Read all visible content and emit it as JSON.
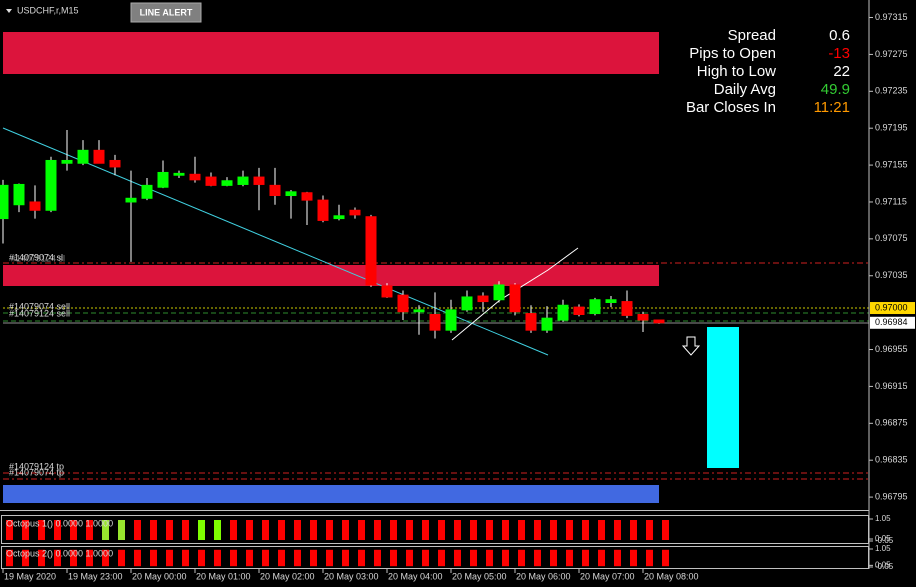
{
  "chart_data": [
    {
      "type": "candlestick",
      "title": "USDCHF,r,M15",
      "categories": [
        "19 May 2020",
        null,
        null,
        null,
        "19 May 23:00",
        null,
        null,
        null,
        "20 May 00:00",
        null,
        null,
        null,
        "20 May 01:00",
        null,
        null,
        null,
        "20 May 02:00",
        null,
        null,
        null,
        "20 May 03:00",
        null,
        null,
        null,
        "20 May 04:00",
        null,
        null,
        null,
        "20 May 05:00",
        null,
        null,
        null,
        "20 May 06:00",
        null,
        null,
        null,
        "20 May 07:00",
        null,
        null,
        null,
        "20 May 08:00",
        null
      ],
      "open": [
        0.97097,
        0.97112,
        0.97115,
        0.97106,
        0.97157,
        0.97157,
        0.97171,
        0.9716,
        0.97115,
        0.97119,
        0.97131,
        0.97144,
        0.97145,
        0.97142,
        0.97133,
        0.97134,
        0.97142,
        0.97133,
        0.97122,
        0.97125,
        0.97117,
        0.97097,
        0.97106,
        0.97099,
        0.97024,
        0.97014,
        0.96996,
        0.96993,
        0.96976,
        0.96998,
        0.97013,
        0.97009,
        0.97025,
        0.96994,
        0.96976,
        0.96987,
        0.97001,
        0.96994,
        0.97006,
        0.97007,
        0.96993,
        0.96987
      ],
      "high": [
        0.97139,
        0.97135,
        0.97133,
        0.97164,
        0.97193,
        0.97182,
        0.97182,
        0.97166,
        0.97149,
        0.97141,
        0.9716,
        0.97149,
        0.97164,
        0.97147,
        0.97142,
        0.97149,
        0.97152,
        0.97152,
        0.97128,
        0.97126,
        0.97122,
        0.97112,
        0.97109,
        0.97101,
        0.97027,
        0.97019,
        0.97003,
        0.97017,
        0.97009,
        0.97019,
        0.97017,
        0.97029,
        0.97027,
        0.97003,
        0.97002,
        0.97009,
        0.97004,
        0.97011,
        0.97013,
        0.97019,
        0.96996,
        0.96987
      ],
      "low": [
        0.9707,
        0.97104,
        0.97097,
        0.97104,
        0.97149,
        0.97155,
        0.97157,
        0.97144,
        0.9705,
        0.97117,
        0.9713,
        0.97141,
        0.97136,
        0.97132,
        0.97132,
        0.97132,
        0.97106,
        0.97112,
        0.97097,
        0.9709,
        0.97093,
        0.97095,
        0.97097,
        0.97023,
        0.97011,
        0.96987,
        0.96971,
        0.96967,
        0.96973,
        0.96996,
        0.96996,
        0.97006,
        0.96992,
        0.96973,
        0.96973,
        0.96985,
        0.96991,
        0.96992,
        0.97001,
        0.96989,
        0.96974,
        0.96983
      ],
      "close": [
        0.97133,
        0.97134,
        0.97106,
        0.9716,
        0.9716,
        0.97171,
        0.97157,
        0.97153,
        0.97119,
        0.97133,
        0.97147,
        0.97146,
        0.97139,
        0.97133,
        0.97138,
        0.97142,
        0.97134,
        0.97122,
        0.97126,
        0.97117,
        0.97095,
        0.971,
        0.97101,
        0.97025,
        0.97012,
        0.96996,
        0.96998,
        0.96976,
        0.96998,
        0.97012,
        0.97007,
        0.97025,
        0.96996,
        0.96976,
        0.96989,
        0.97003,
        0.96993,
        0.97009,
        0.97009,
        0.96992,
        0.96987,
        0.96984
      ],
      "ylim": [
        0.96781,
        0.97334
      ],
      "yticks": [
        0.96795,
        0.96835,
        0.96875,
        0.96915,
        0.96955,
        0.97035,
        0.97075,
        0.97115,
        0.97155,
        0.97195,
        0.97235,
        0.97275,
        0.97315
      ],
      "up_color": "#00ff00",
      "down_color": "#ff0000",
      "current_price": 0.96984,
      "alert_price": {
        "value": 0.97,
        "label": "0.97000"
      }
    },
    {
      "type": "bar",
      "title": "Octopus 1() 0.0000 1.0000",
      "values": [
        1,
        1,
        1,
        1,
        1,
        1,
        1,
        1,
        1,
        1,
        1,
        1,
        1,
        1,
        1,
        1,
        1,
        1,
        1,
        1,
        1,
        1,
        1,
        1,
        1,
        1,
        1,
        1,
        1,
        1,
        1,
        1,
        1,
        1,
        1,
        1,
        1,
        1,
        1,
        1,
        1,
        1
      ],
      "colors": [
        "#ff0000",
        "#ff0000",
        "#ff0000",
        "#ff0000",
        "#ff0000",
        "#ff0000",
        "#99e62e",
        "#99e62e",
        "#ff0000",
        "#ff0000",
        "#ff0000",
        "#ff0000",
        "#7fff00",
        "#7fff00",
        "#ff0000",
        "#ff0000",
        "#ff0000",
        "#ff0000",
        "#ff0000",
        "#ff0000",
        "#ff0000",
        "#ff0000",
        "#ff0000",
        "#ff0000",
        "#ff0000",
        "#ff0000",
        "#ff0000",
        "#ff0000",
        "#ff0000",
        "#ff0000",
        "#ff0000",
        "#ff0000",
        "#ff0000",
        "#ff0000",
        "#ff0000",
        "#ff0000",
        "#ff0000",
        "#ff0000",
        "#ff0000",
        "#ff0000",
        "#ff0000",
        "#ff0000"
      ],
      "ylim": [
        -0.05,
        1.05
      ],
      "yticks": [
        1.05,
        0.05,
        -0.05
      ]
    },
    {
      "type": "bar",
      "title": "Octopus 2() 0.0000 1.0000",
      "values": [
        1,
        1,
        1,
        1,
        1,
        1,
        1,
        1,
        1,
        1,
        1,
        1,
        1,
        1,
        1,
        1,
        1,
        1,
        1,
        1,
        1,
        1,
        1,
        1,
        1,
        1,
        1,
        1,
        1,
        1,
        1,
        1,
        1,
        1,
        1,
        1,
        1,
        1,
        1,
        1,
        1,
        1
      ],
      "colors": [
        "#ff0000",
        "#ff0000",
        "#ff0000",
        "#ff0000",
        "#ff0000",
        "#ff0000",
        "#ff0000",
        "#ff0000",
        "#ff0000",
        "#ff0000",
        "#ff0000",
        "#ff0000",
        "#ff0000",
        "#ff0000",
        "#ff0000",
        "#ff0000",
        "#ff0000",
        "#ff0000",
        "#ff0000",
        "#ff0000",
        "#ff0000",
        "#ff0000",
        "#ff0000",
        "#ff0000",
        "#ff0000",
        "#ff0000",
        "#ff0000",
        "#ff0000",
        "#ff0000",
        "#ff0000",
        "#ff0000",
        "#ff0000",
        "#ff0000",
        "#ff0000",
        "#ff0000",
        "#ff0000",
        "#ff0000",
        "#ff0000",
        "#ff0000",
        "#ff0000",
        "#ff0000",
        "#ff0000"
      ],
      "ylim": [
        -0.05,
        1.05
      ],
      "yticks": [
        1.05,
        0.05,
        -0.05
      ]
    }
  ],
  "toolbar": {
    "button": "LINE ALERT"
  },
  "info_panel": [
    {
      "label": "Spread",
      "value": 0.6,
      "color": "#ffffff"
    },
    {
      "label": "Pips to Open",
      "value": -13,
      "color": "#ff0000"
    },
    {
      "label": "High to Low",
      "value": 22,
      "color": "#ffffff"
    },
    {
      "label": "Daily Avg",
      "value": 49.9,
      "color": "#33cc33"
    },
    {
      "label": "Bar Closes In",
      "value": "11:21",
      "color": "#ff9900"
    }
  ],
  "annotations": [
    "#14079074 sl",
    "#14079124 sl",
    "#14079074 sell",
    "#14079124 sell",
    "#14079124 tp",
    "#14079074 tp"
  ]
}
